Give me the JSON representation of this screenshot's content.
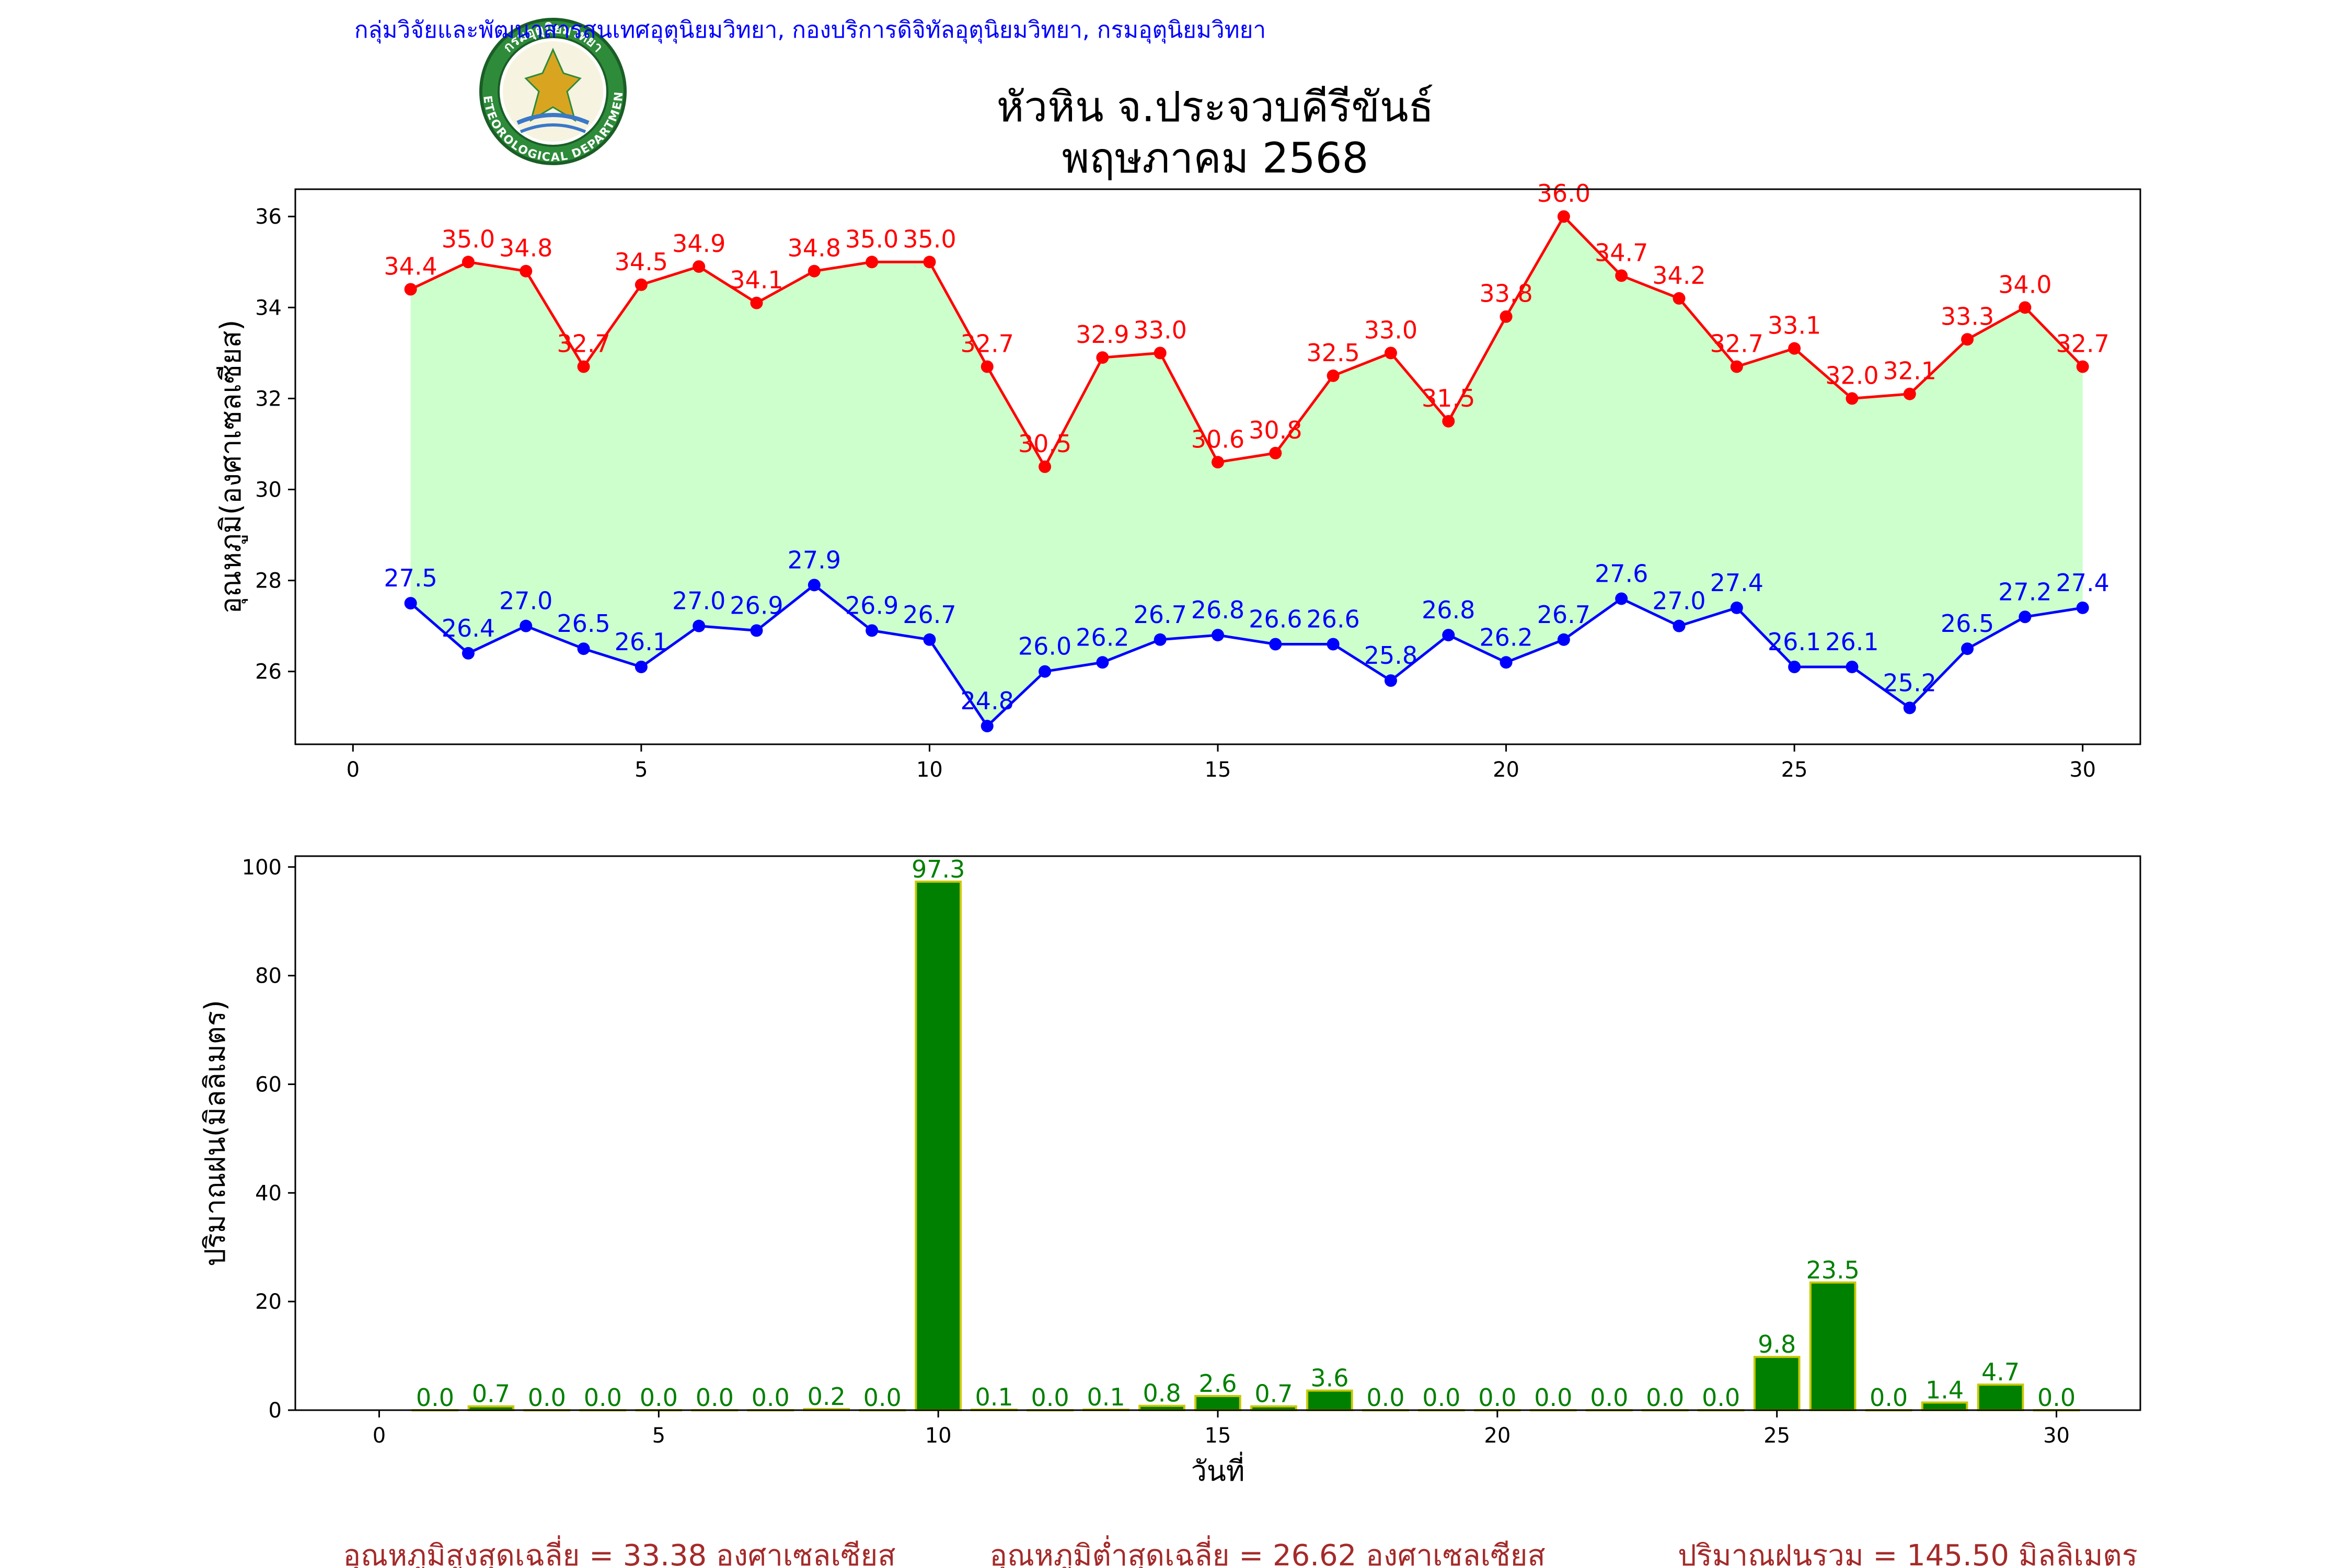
{
  "header": {
    "department": "กลุ่มวิจัยและพัฒนาสารสนเทศอุตุนิยมวิทยา, กองบริการดิจิทัลอุตุนิยมวิทยา, กรมอุตุนิยมวิทยา",
    "title_line1": "หัวหิน จ.ประจวบคีรีขันธ์",
    "title_line2": "พฤษภาคม 2568",
    "logo": {
      "icon": "meteorological-department-seal",
      "text_top": "กรมอุตุนิยมวิทยา",
      "text_bottom": "METEOROLOGICAL DEPARTMENT"
    }
  },
  "colors": {
    "max_temp": "#ff0000",
    "min_temp": "#0000ff",
    "fill": "#ccffcc",
    "rain_bar": "#008000",
    "rain_edge": "#c8c800",
    "rain_label": "#008000",
    "header_text": "#0000ff",
    "summary_text": "#a52a2a"
  },
  "chart_data": [
    {
      "type": "line",
      "ylabel": "อุณหภูมิ(องศาเซลเซียส)",
      "xlabel": "",
      "xlim": [
        -1,
        31
      ],
      "ylim": [
        24.4,
        36.6
      ],
      "xticks": [
        0,
        5,
        10,
        15,
        20,
        25,
        30
      ],
      "yticks": [
        26,
        28,
        30,
        32,
        34,
        36
      ],
      "x": [
        1,
        2,
        3,
        4,
        5,
        6,
        7,
        8,
        9,
        10,
        11,
        12,
        13,
        14,
        15,
        16,
        17,
        18,
        19,
        20,
        21,
        22,
        23,
        24,
        25,
        26,
        27,
        28,
        29,
        30
      ],
      "series": [
        {
          "values": [
            34.4,
            35.0,
            34.8,
            32.7,
            34.5,
            34.9,
            34.1,
            34.8,
            35.0,
            35.0,
            32.7,
            30.5,
            32.9,
            33.0,
            30.6,
            30.8,
            32.5,
            33.0,
            31.5,
            33.8,
            36.0,
            34.7,
            34.2,
            32.7,
            33.1,
            32.0,
            32.1,
            33.3,
            34.0,
            32.7
          ]
        },
        {
          "values": [
            27.5,
            26.4,
            27.0,
            26.5,
            26.1,
            27.0,
            26.9,
            27.9,
            26.9,
            26.7,
            24.8,
            26.0,
            26.2,
            26.7,
            26.8,
            26.6,
            26.6,
            25.8,
            26.8,
            26.2,
            26.7,
            27.6,
            27.0,
            27.4,
            26.1,
            26.1,
            25.2,
            26.5,
            27.2,
            27.4
          ]
        }
      ]
    },
    {
      "type": "bar",
      "ylabel": "ปริมาณฝน(มิลลิเมตร)",
      "xlabel": "วันที่",
      "xlim": [
        -1.5,
        31.5
      ],
      "ylim": [
        0,
        102
      ],
      "xticks": [
        0,
        5,
        10,
        15,
        20,
        25,
        30
      ],
      "yticks": [
        0,
        20,
        40,
        60,
        80,
        100
      ],
      "x": [
        1,
        2,
        3,
        4,
        5,
        6,
        7,
        8,
        9,
        10,
        11,
        12,
        13,
        14,
        15,
        16,
        17,
        18,
        19,
        20,
        21,
        22,
        23,
        24,
        25,
        26,
        27,
        28,
        29,
        30
      ],
      "values": [
        0.0,
        0.7,
        0.0,
        0.0,
        0.0,
        0.0,
        0.0,
        0.2,
        0.0,
        97.3,
        0.1,
        0.0,
        0.1,
        0.8,
        2.6,
        0.7,
        3.6,
        0.0,
        0.0,
        0.0,
        0.0,
        0.0,
        0.0,
        0.0,
        9.8,
        23.5,
        0.0,
        1.4,
        4.7,
        0.0
      ]
    }
  ],
  "summary": {
    "avg_max": "อุณหภูมิสูงสุดเฉลี่ย = 33.38 องศาเซลเซียส",
    "avg_min": "อุณหภูมิต่ำสุดเฉลี่ย = 26.62 องศาเซลเซียส",
    "total_rain": "ปริมาณฝนรวม = 145.50 มิลลิเมตร"
  }
}
